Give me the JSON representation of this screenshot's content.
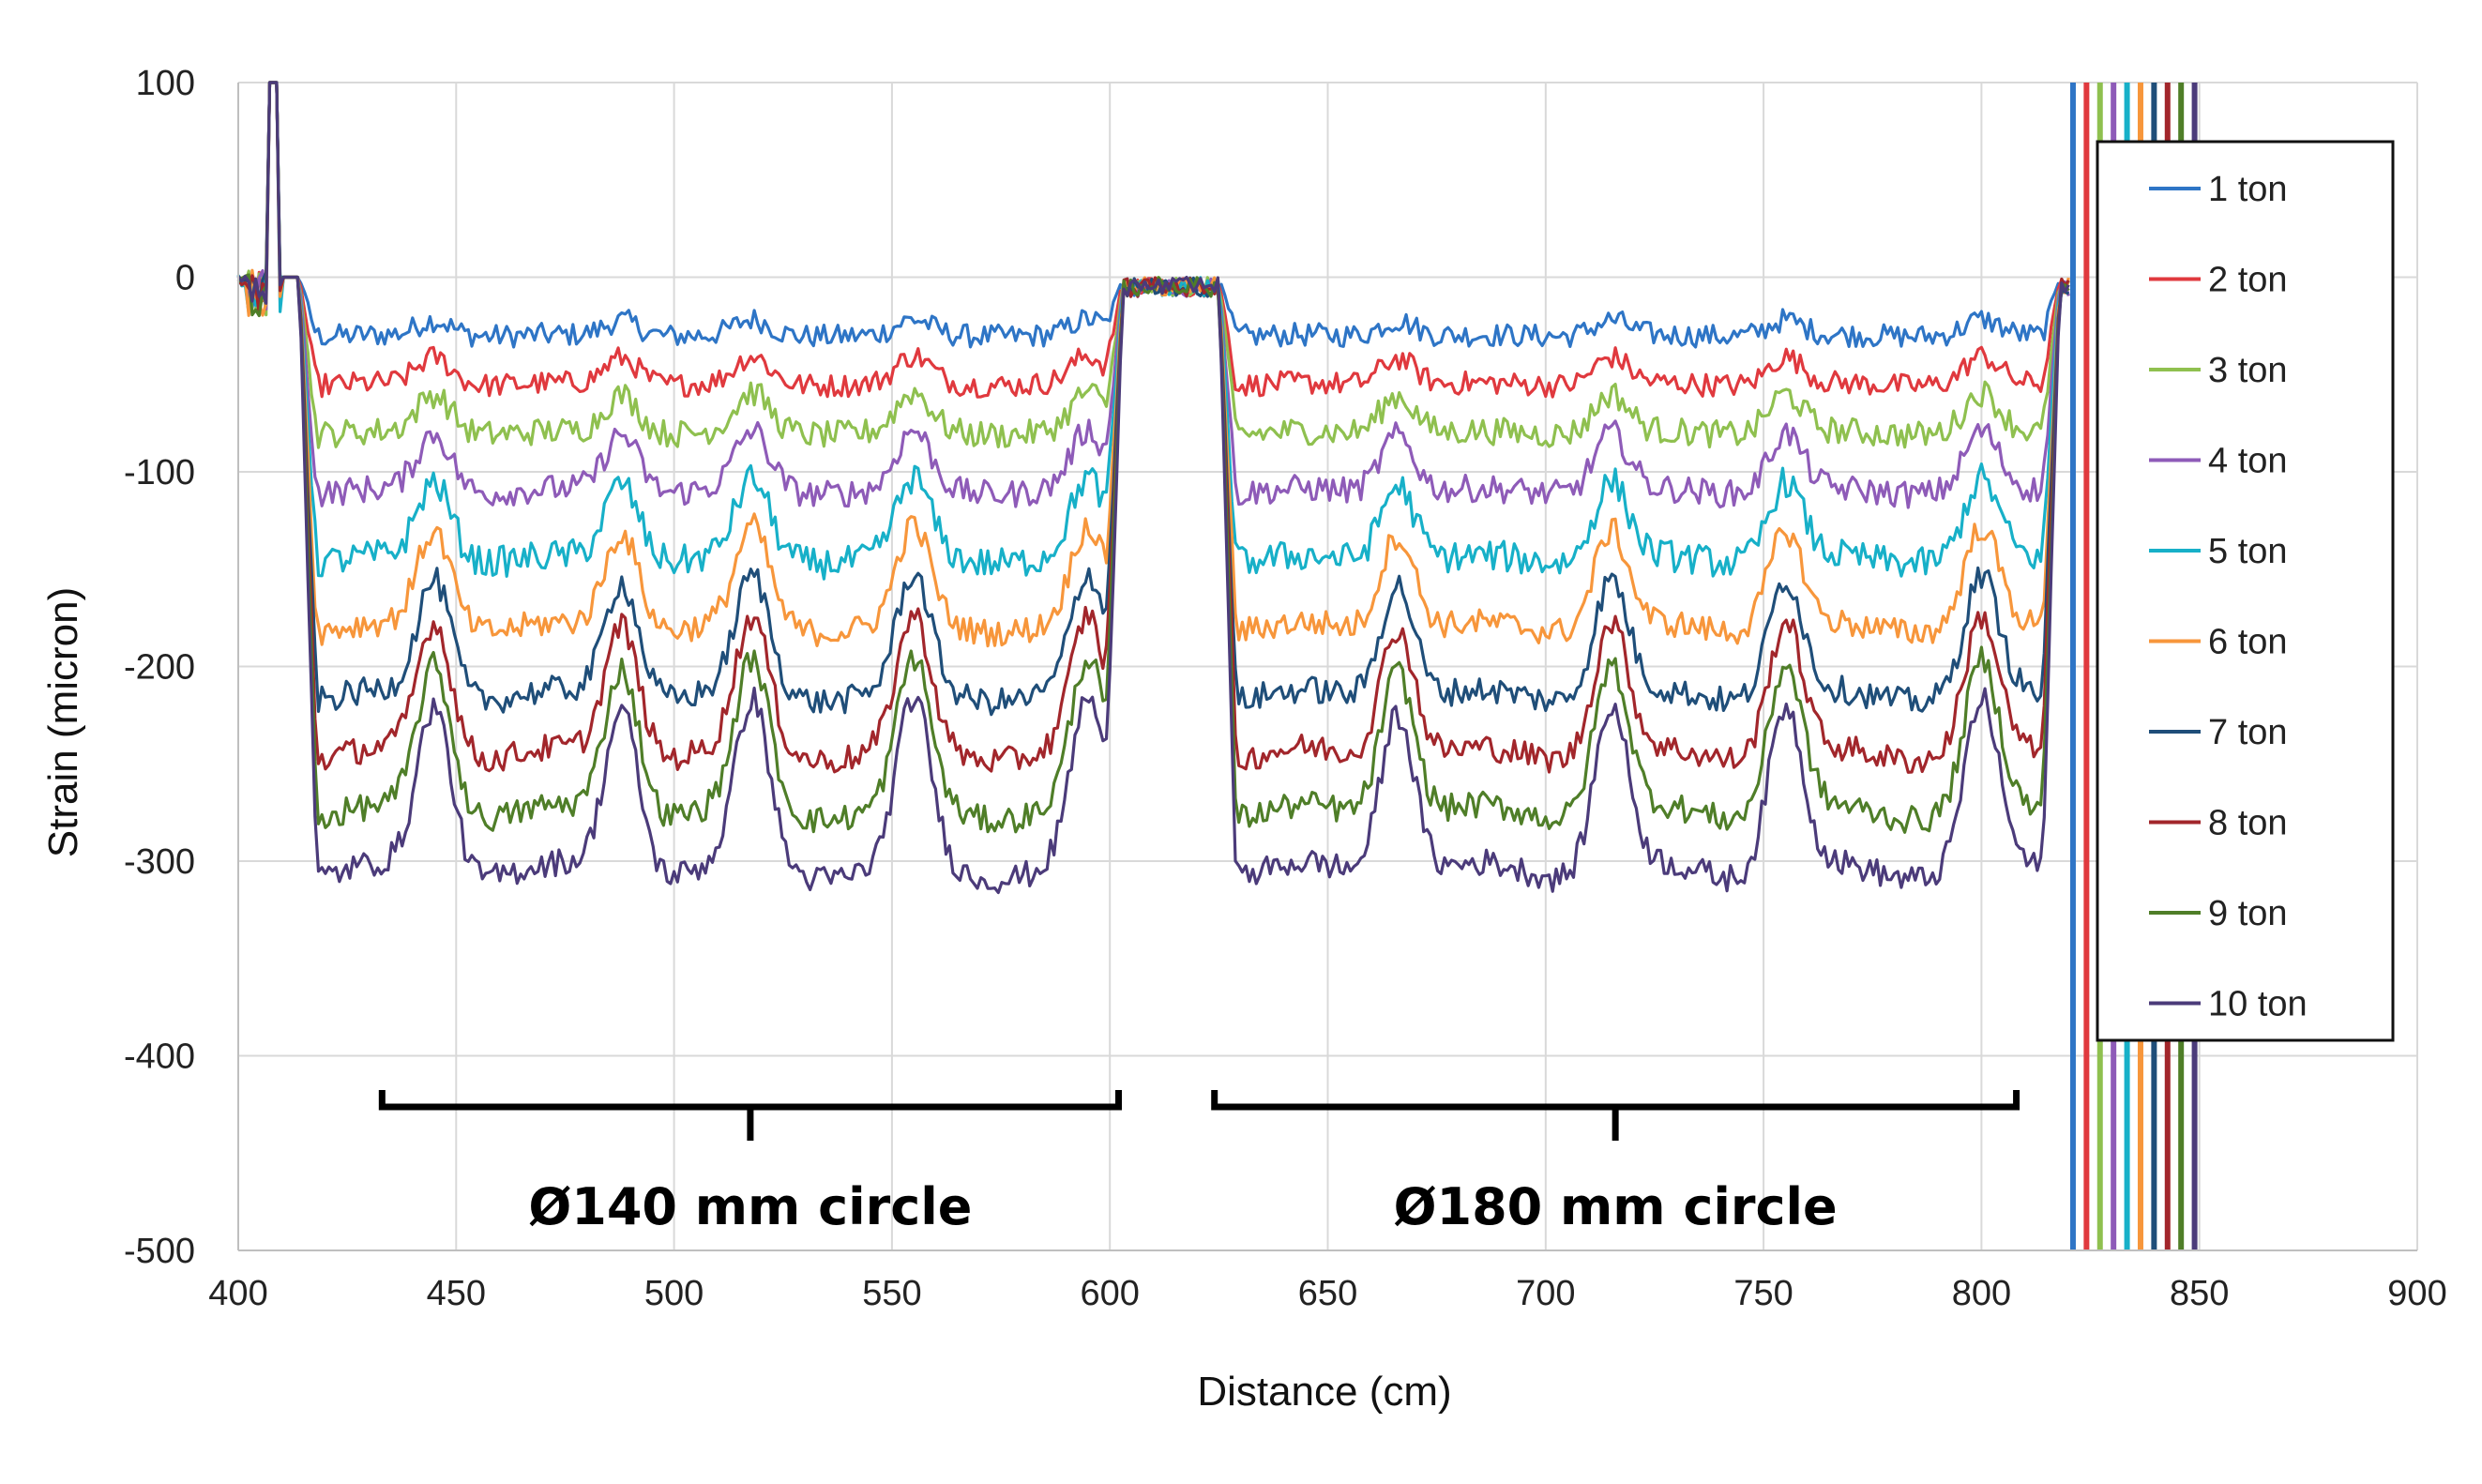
{
  "chart_data": {
    "type": "line",
    "title": "",
    "xlabel": "Distance (cm)",
    "ylabel": "Strain (micron)",
    "xlim": [
      400,
      900
    ],
    "ylim": [
      -500,
      100
    ],
    "xticks": [
      "400",
      "450",
      "500",
      "550",
      "600",
      "650",
      "700",
      "750",
      "800",
      "850",
      "900"
    ],
    "yticks": [
      "100",
      "0",
      "-100",
      "-200",
      "-300",
      "-400",
      "-500"
    ],
    "grid": true,
    "legend_position": "top-right",
    "series": [
      {
        "name": "1 ton",
        "color": "#2e75c6",
        "base": -30,
        "amp": 8,
        "noise": 6
      },
      {
        "name": "2 ton",
        "color": "#e0393e",
        "base": -55,
        "amp": 14,
        "noise": 6
      },
      {
        "name": "3 ton",
        "color": "#8fc04f",
        "base": -80,
        "amp": 20,
        "noise": 7
      },
      {
        "name": "4 ton",
        "color": "#8e5bb8",
        "base": -110,
        "amp": 30,
        "noise": 7
      },
      {
        "name": "5 ton",
        "color": "#17b0c8",
        "base": -145,
        "amp": 40,
        "noise": 8
      },
      {
        "name": "6 ton",
        "color": "#f7963b",
        "base": -180,
        "amp": 50,
        "noise": 7
      },
      {
        "name": "7 ton",
        "color": "#1f4e79",
        "base": -215,
        "amp": 60,
        "noise": 7
      },
      {
        "name": "8 ton",
        "color": "#a2262b",
        "base": -245,
        "amp": 68,
        "noise": 7
      },
      {
        "name": "9 ton",
        "color": "#4f7e28",
        "base": -275,
        "amp": 76,
        "noise": 7
      },
      {
        "name": "10 ton",
        "color": "#4b3b7a",
        "base": -305,
        "amp": 85,
        "noise": 7
      }
    ],
    "segments": [
      {
        "start": 414,
        "end": 603,
        "peaks": [
          445,
          488,
          518,
          555,
          595
        ]
      },
      {
        "start": 625,
        "end": 818,
        "peaks": [
          666,
          715,
          755,
          800
        ]
      }
    ],
    "annotations": [
      {
        "text": "Ø140 mm circle",
        "x_from": 433,
        "x_to": 602
      },
      {
        "text": "Ø180 mm circle",
        "x_from": 624,
        "x_to": 808
      }
    ]
  }
}
